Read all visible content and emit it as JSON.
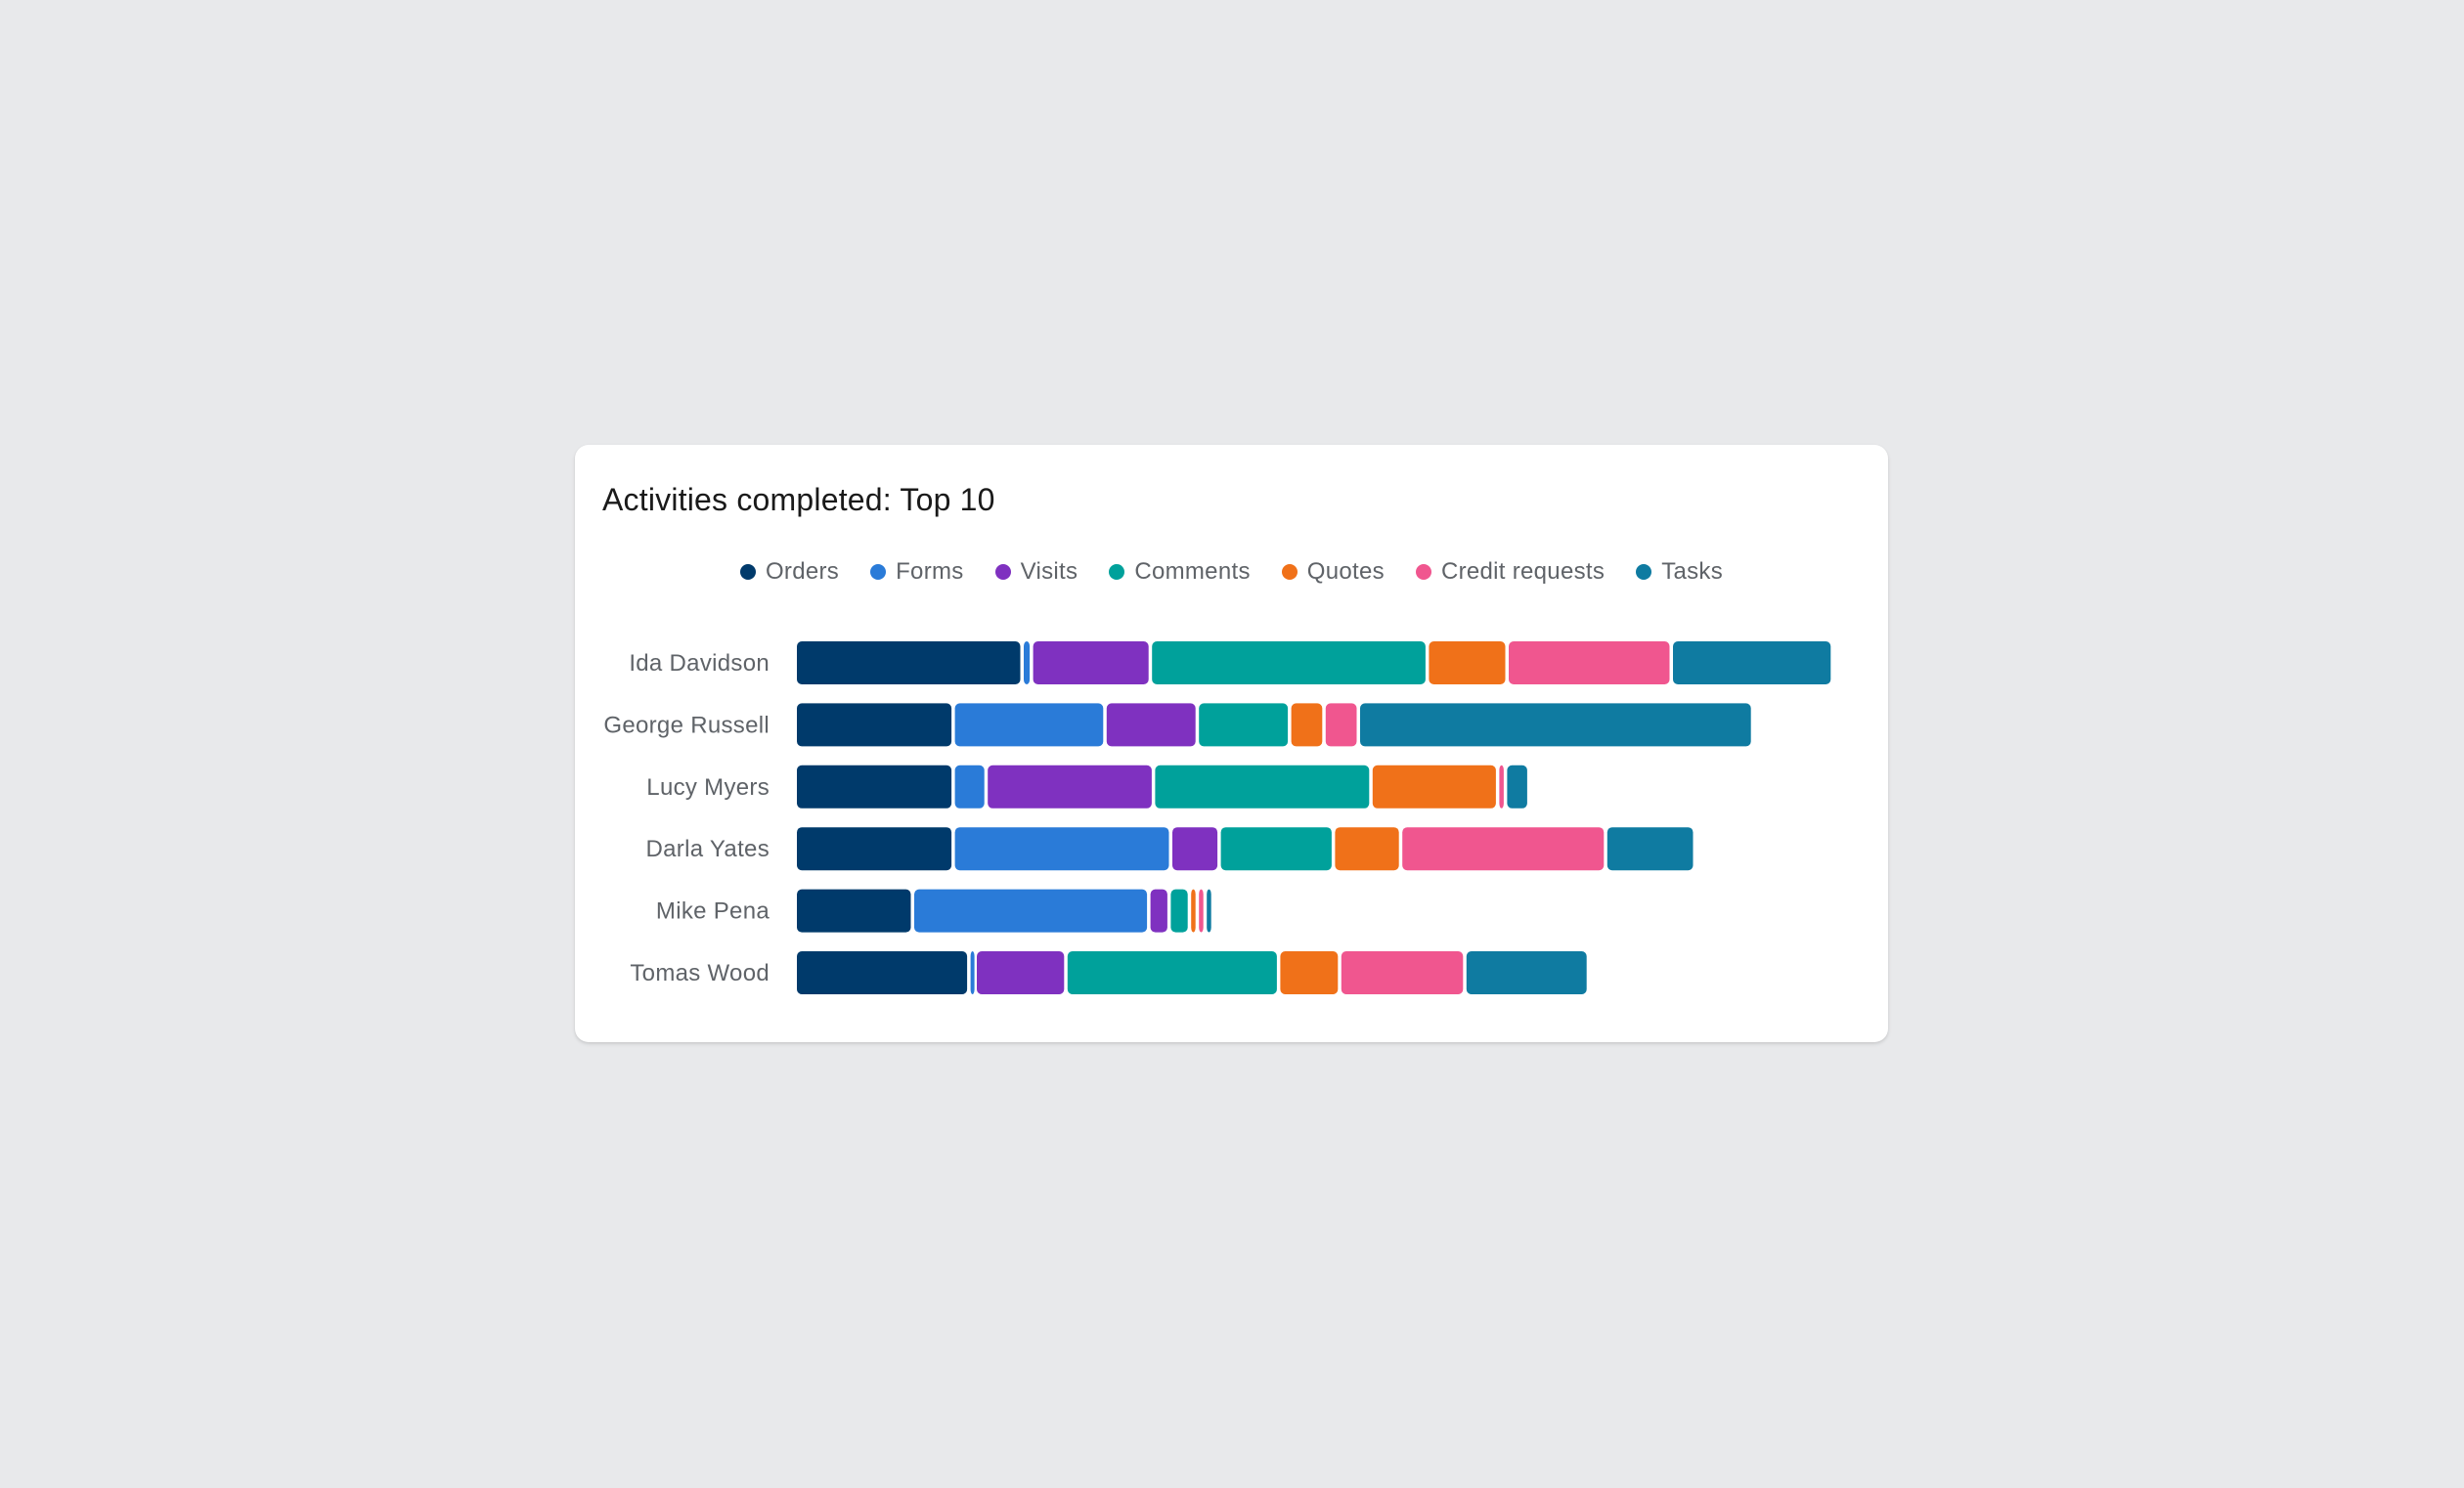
{
  "card": {
    "title": "Activities completed: Top 10"
  },
  "chart_data": {
    "type": "bar",
    "orientation": "horizontal",
    "stacked": true,
    "grid": false,
    "legend_position": "top-center",
    "categories": [
      "Ida Davidson",
      "George Russell",
      "Lucy Myers",
      "Darla Yates",
      "Mike Pena",
      "Tomas Wood"
    ],
    "series": [
      {
        "name": "Orders",
        "color": "#003a6b",
        "values": [
          145,
          101,
          101,
          101,
          75,
          111
        ]
      },
      {
        "name": "Forms",
        "color": "#2a7bd8",
        "values": [
          6,
          97,
          21,
          139,
          151,
          4
        ]
      },
      {
        "name": "Visits",
        "color": "#7f31c0",
        "values": [
          76,
          59,
          107,
          31,
          13,
          58
        ]
      },
      {
        "name": "Comments",
        "color": "#00a19b",
        "values": [
          177,
          59,
          139,
          73,
          13,
          136
        ]
      },
      {
        "name": "Quotes",
        "color": "#f07119",
        "values": [
          51,
          22,
          81,
          43,
          5,
          39
        ]
      },
      {
        "name": "Credit requests",
        "color": "#f0568f",
        "values": [
          105,
          22,
          5,
          131,
          5,
          80
        ]
      },
      {
        "name": "Tasks",
        "color": "#0f7ba1",
        "values": [
          103,
          252,
          15,
          57,
          5,
          79
        ]
      }
    ]
  }
}
